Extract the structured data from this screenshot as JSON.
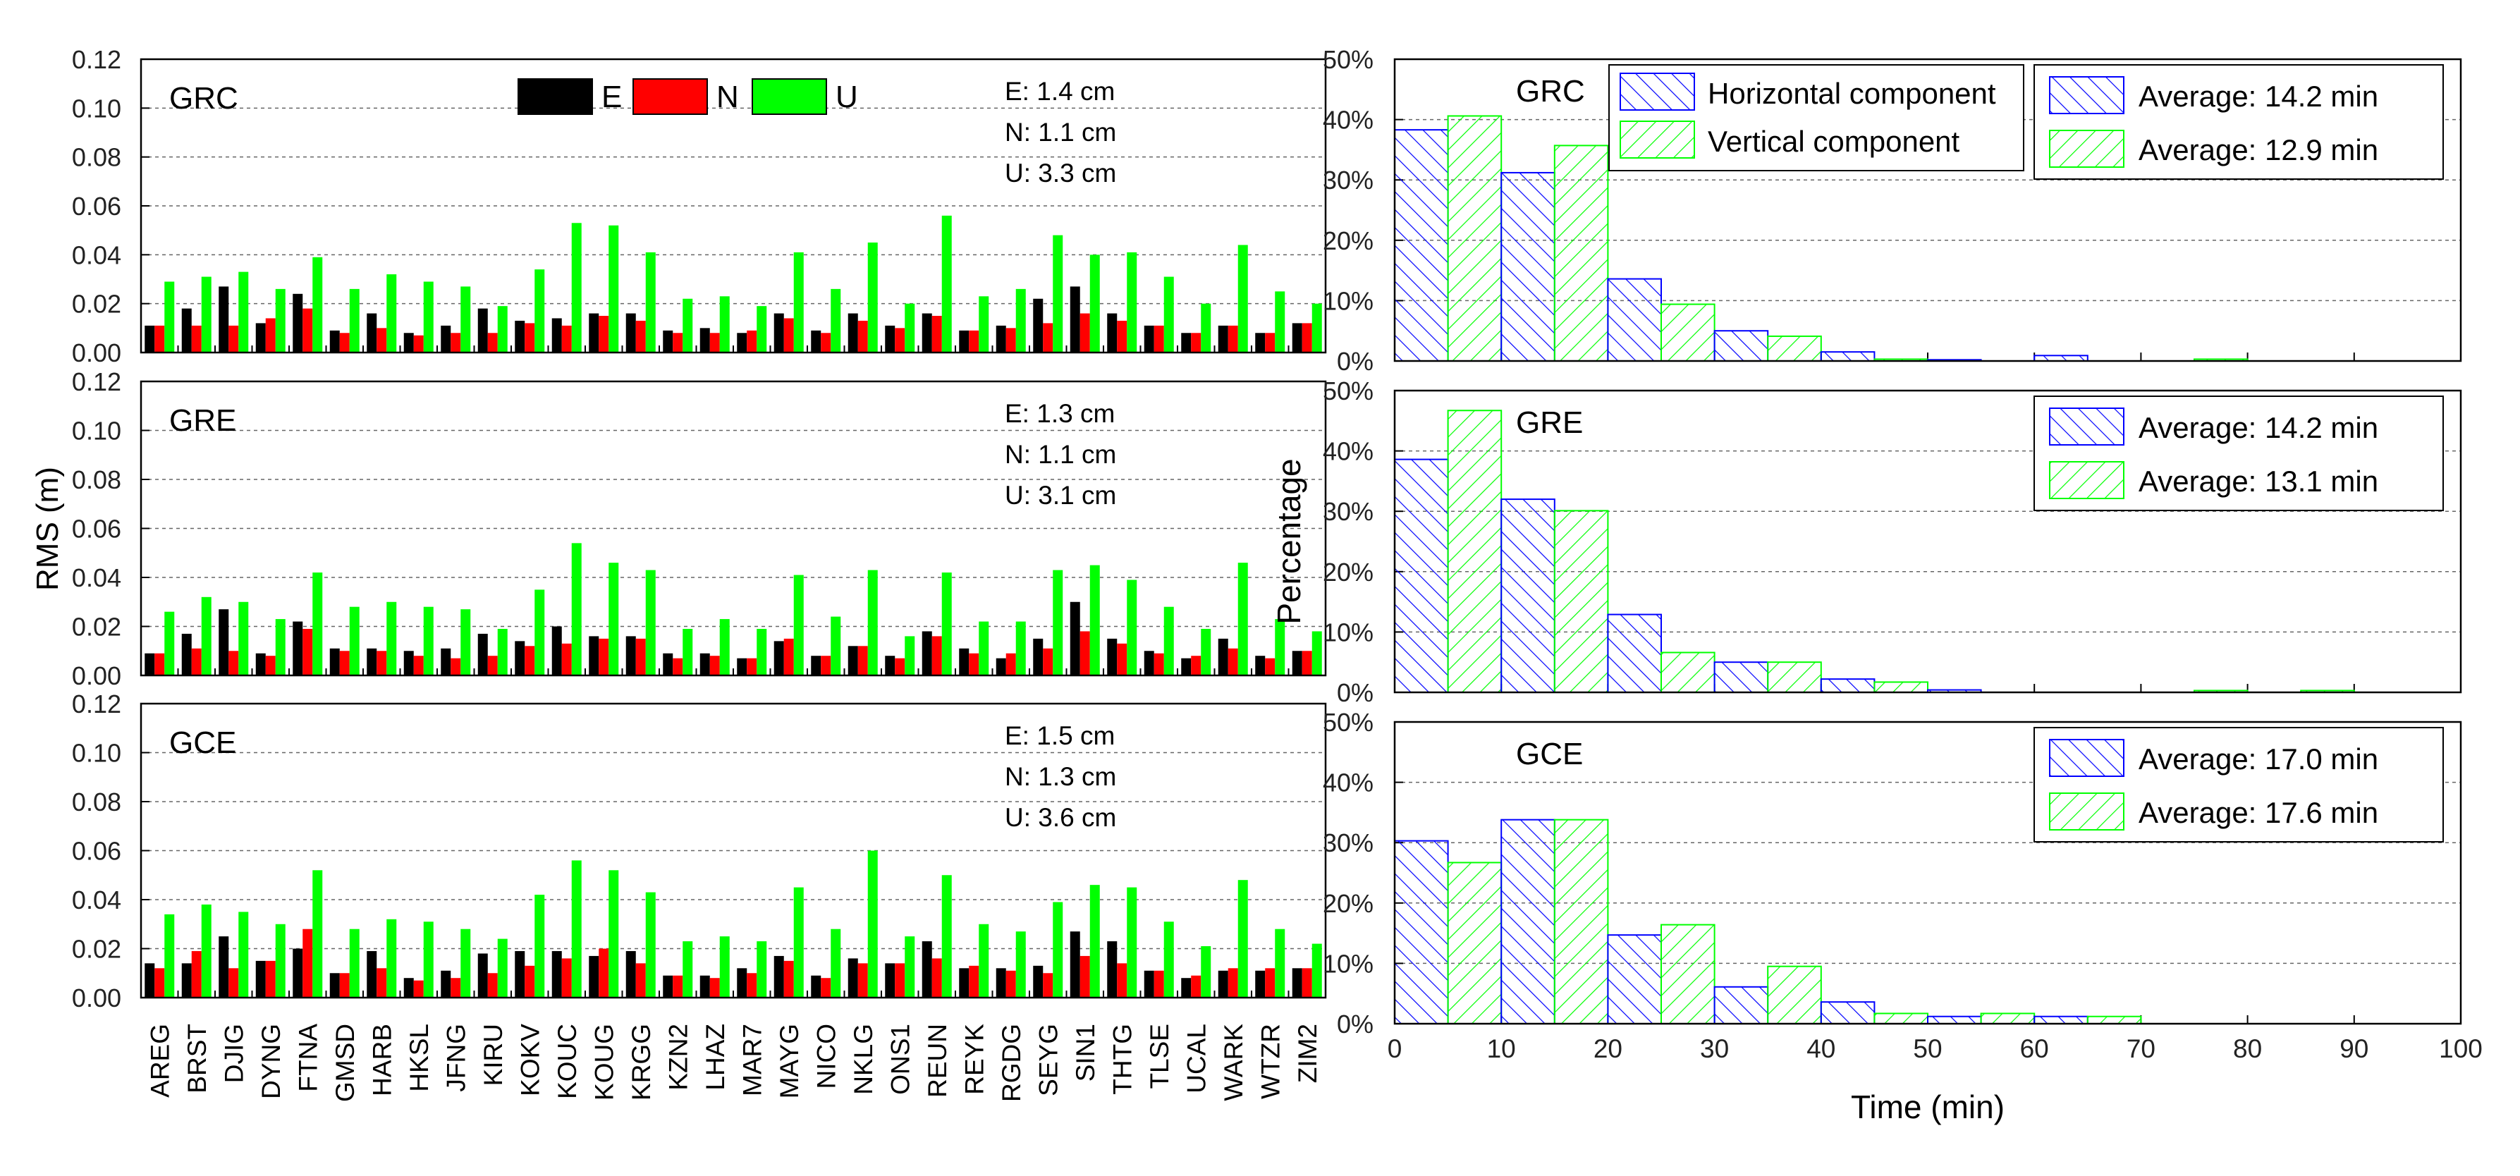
{
  "colors": {
    "E": "#000000",
    "N": "#ff0000",
    "U": "#00ff00",
    "horizontal": "#0000ff",
    "vertical": "#00ff00",
    "grid": "#666666",
    "axis": "#000000",
    "tick_text": "#222222"
  },
  "chart_data": [
    {
      "type": "bar",
      "title": "GRC",
      "stations": [
        "AREG",
        "BRST",
        "DJIG",
        "DYNG",
        "FTNA",
        "GMSD",
        "HARB",
        "HKSL",
        "JFNG",
        "KIRU",
        "KOKV",
        "KOUC",
        "KOUG",
        "KRGG",
        "KZN2",
        "LHAZ",
        "MAR7",
        "MAYG",
        "NICO",
        "NKLG",
        "ONS1",
        "REUN",
        "REYK",
        "RGDG",
        "SEYG",
        "SIN1",
        "THTG",
        "TLSE",
        "UCAL",
        "WARK",
        "WTZR",
        "ZIM2"
      ],
      "series": [
        {
          "name": "E",
          "values": [
            0.011,
            0.018,
            0.027,
            0.012,
            0.024,
            0.009,
            0.016,
            0.008,
            0.011,
            0.018,
            0.013,
            0.014,
            0.016,
            0.016,
            0.009,
            0.01,
            0.008,
            0.016,
            0.009,
            0.016,
            0.011,
            0.016,
            0.009,
            0.011,
            0.022,
            0.027,
            0.016,
            0.011,
            0.008,
            0.011,
            0.008,
            0.012
          ]
        },
        {
          "name": "N",
          "values": [
            0.011,
            0.011,
            0.011,
            0.014,
            0.018,
            0.008,
            0.01,
            0.007,
            0.008,
            0.008,
            0.012,
            0.011,
            0.015,
            0.013,
            0.008,
            0.008,
            0.009,
            0.014,
            0.008,
            0.013,
            0.01,
            0.015,
            0.009,
            0.01,
            0.012,
            0.016,
            0.013,
            0.011,
            0.008,
            0.011,
            0.008,
            0.012
          ]
        },
        {
          "name": "U",
          "values": [
            0.029,
            0.031,
            0.033,
            0.026,
            0.039,
            0.026,
            0.032,
            0.029,
            0.027,
            0.019,
            0.034,
            0.053,
            0.052,
            0.041,
            0.022,
            0.023,
            0.019,
            0.041,
            0.026,
            0.045,
            0.02,
            0.056,
            0.023,
            0.026,
            0.048,
            0.04,
            0.041,
            0.031,
            0.02,
            0.044,
            0.025,
            0.02
          ]
        }
      ],
      "stats": [
        "E: 1.4 cm",
        "N: 1.1 cm",
        "U: 3.3 cm"
      ],
      "ylabel": "RMS (m)",
      "ylim": [
        0,
        0.12
      ],
      "yticks": [
        "0.00",
        "0.02",
        "0.04",
        "0.06",
        "0.08",
        "0.10",
        "0.12"
      ],
      "legend": [
        "E",
        "N",
        "U"
      ]
    },
    {
      "type": "bar",
      "title": "GRE",
      "stations": [
        "AREG",
        "BRST",
        "DJIG",
        "DYNG",
        "FTNA",
        "GMSD",
        "HARB",
        "HKSL",
        "JFNG",
        "KIRU",
        "KOKV",
        "KOUC",
        "KOUG",
        "KRGG",
        "KZN2",
        "LHAZ",
        "MAR7",
        "MAYG",
        "NICO",
        "NKLG",
        "ONS1",
        "REUN",
        "REYK",
        "RGDG",
        "SEYG",
        "SIN1",
        "THTG",
        "TLSE",
        "UCAL",
        "WARK",
        "WTZR",
        "ZIM2"
      ],
      "series": [
        {
          "name": "E",
          "values": [
            0.009,
            0.017,
            0.027,
            0.009,
            0.022,
            0.011,
            0.011,
            0.01,
            0.011,
            0.017,
            0.014,
            0.02,
            0.016,
            0.016,
            0.009,
            0.009,
            0.007,
            0.014,
            0.008,
            0.012,
            0.008,
            0.018,
            0.011,
            0.007,
            0.015,
            0.03,
            0.015,
            0.01,
            0.007,
            0.015,
            0.008,
            0.01
          ]
        },
        {
          "name": "N",
          "values": [
            0.009,
            0.011,
            0.01,
            0.008,
            0.019,
            0.01,
            0.01,
            0.008,
            0.007,
            0.008,
            0.012,
            0.013,
            0.015,
            0.015,
            0.007,
            0.008,
            0.007,
            0.015,
            0.008,
            0.012,
            0.007,
            0.016,
            0.009,
            0.009,
            0.011,
            0.018,
            0.013,
            0.009,
            0.008,
            0.011,
            0.007,
            0.01
          ]
        },
        {
          "name": "U",
          "values": [
            0.026,
            0.032,
            0.03,
            0.023,
            0.042,
            0.028,
            0.03,
            0.028,
            0.027,
            0.019,
            0.035,
            0.054,
            0.046,
            0.043,
            0.019,
            0.023,
            0.019,
            0.041,
            0.024,
            0.043,
            0.016,
            0.042,
            0.022,
            0.022,
            0.043,
            0.045,
            0.039,
            0.028,
            0.019,
            0.046,
            0.023,
            0.018
          ]
        }
      ],
      "stats": [
        "E: 1.3 cm",
        "N: 1.1 cm",
        "U: 3.1 cm"
      ],
      "ylim": [
        0,
        0.12
      ],
      "yticks": [
        "0.00",
        "0.02",
        "0.04",
        "0.06",
        "0.08",
        "0.10",
        "0.12"
      ]
    },
    {
      "type": "bar",
      "title": "GCE",
      "stations": [
        "AREG",
        "BRST",
        "DJIG",
        "DYNG",
        "FTNA",
        "GMSD",
        "HARB",
        "HKSL",
        "JFNG",
        "KIRU",
        "KOKV",
        "KOUC",
        "KOUG",
        "KRGG",
        "KZN2",
        "LHAZ",
        "MAR7",
        "MAYG",
        "NICO",
        "NKLG",
        "ONS1",
        "REUN",
        "REYK",
        "RGDG",
        "SEYG",
        "SIN1",
        "THTG",
        "TLSE",
        "UCAL",
        "WARK",
        "WTZR",
        "ZIM2"
      ],
      "series": [
        {
          "name": "E",
          "values": [
            0.014,
            0.014,
            0.025,
            0.015,
            0.02,
            0.01,
            0.019,
            0.008,
            0.011,
            0.018,
            0.019,
            0.019,
            0.017,
            0.019,
            0.009,
            0.009,
            0.012,
            0.017,
            0.009,
            0.016,
            0.014,
            0.023,
            0.012,
            0.012,
            0.013,
            0.027,
            0.023,
            0.011,
            0.008,
            0.011,
            0.011,
            0.012
          ]
        },
        {
          "name": "N",
          "values": [
            0.012,
            0.019,
            0.012,
            0.015,
            0.028,
            0.01,
            0.012,
            0.007,
            0.008,
            0.01,
            0.013,
            0.016,
            0.02,
            0.014,
            0.009,
            0.008,
            0.01,
            0.015,
            0.008,
            0.014,
            0.014,
            0.016,
            0.013,
            0.011,
            0.01,
            0.017,
            0.014,
            0.011,
            0.009,
            0.012,
            0.012,
            0.012
          ]
        },
        {
          "name": "U",
          "values": [
            0.034,
            0.038,
            0.035,
            0.03,
            0.052,
            0.028,
            0.032,
            0.031,
            0.028,
            0.024,
            0.042,
            0.056,
            0.052,
            0.043,
            0.023,
            0.025,
            0.023,
            0.045,
            0.028,
            0.06,
            0.025,
            0.05,
            0.03,
            0.027,
            0.039,
            0.046,
            0.045,
            0.031,
            0.021,
            0.048,
            0.028,
            0.022
          ]
        }
      ],
      "stats": [
        "E: 1.5 cm",
        "N: 1.3 cm",
        "U: 3.6 cm"
      ],
      "ylim": [
        0,
        0.12
      ],
      "yticks": [
        "0.00",
        "0.02",
        "0.04",
        "0.06",
        "0.08",
        "0.10",
        "0.12"
      ]
    },
    {
      "type": "bar",
      "title": "GRC",
      "x": [
        0,
        10,
        20,
        30,
        40,
        50,
        60,
        70,
        80,
        90
      ],
      "series": [
        {
          "name": "Horizontal component",
          "values": [
            38.3,
            31.2,
            13.6,
            5.0,
            1.5,
            0.2,
            0.9,
            0,
            0,
            0
          ]
        },
        {
          "name": "Vertical component",
          "values": [
            40.6,
            35.7,
            9.4,
            4.1,
            0.3,
            0,
            0,
            0.3,
            0,
            0
          ]
        }
      ],
      "legend_names": [
        "Horizontal component",
        "Vertical component"
      ],
      "averages": [
        "Average: 14.2 min",
        "Average: 12.9 min"
      ],
      "ylabel": "Percentage",
      "ylim": [
        0,
        50
      ],
      "yticks": [
        "0%",
        "10%",
        "20%",
        "30%",
        "40%",
        "50%"
      ]
    },
    {
      "type": "bar",
      "title": "GRE",
      "x": [
        0,
        10,
        20,
        30,
        40,
        50,
        60,
        70,
        80,
        90
      ],
      "series": [
        {
          "name": "Horizontal component",
          "values": [
            38.6,
            32.0,
            12.9,
            5.0,
            2.2,
            0.4,
            0,
            0,
            0,
            0
          ]
        },
        {
          "name": "Vertical component",
          "values": [
            46.7,
            30.1,
            6.6,
            5.0,
            1.7,
            0,
            0,
            0.3,
            0.3,
            0
          ]
        }
      ],
      "averages": [
        "Average: 14.2 min",
        "Average: 13.1 min"
      ],
      "ylim": [
        0,
        50
      ],
      "yticks": [
        "0%",
        "10%",
        "20%",
        "30%",
        "40%",
        "50%"
      ]
    },
    {
      "type": "bar",
      "title": "GCE",
      "x": [
        0,
        10,
        20,
        30,
        40,
        50,
        60,
        70,
        80,
        90
      ],
      "series": [
        {
          "name": "Horizontal component",
          "values": [
            30.3,
            33.8,
            14.7,
            6.1,
            3.6,
            1.2,
            1.2,
            0,
            0,
            0
          ]
        },
        {
          "name": "Vertical component",
          "values": [
            26.7,
            33.8,
            16.4,
            9.5,
            1.7,
            1.7,
            1.2,
            0,
            0,
            0
          ]
        }
      ],
      "averages": [
        "Average: 17.0 min",
        "Average: 17.6 min"
      ],
      "ylim": [
        0,
        50
      ],
      "yticks": [
        "0%",
        "10%",
        "20%",
        "30%",
        "40%",
        "50%"
      ],
      "xlabel": "Time (min)",
      "xticks": [
        "0",
        "10",
        "20",
        "30",
        "40",
        "50",
        "60",
        "70",
        "80",
        "90",
        "100"
      ]
    }
  ]
}
